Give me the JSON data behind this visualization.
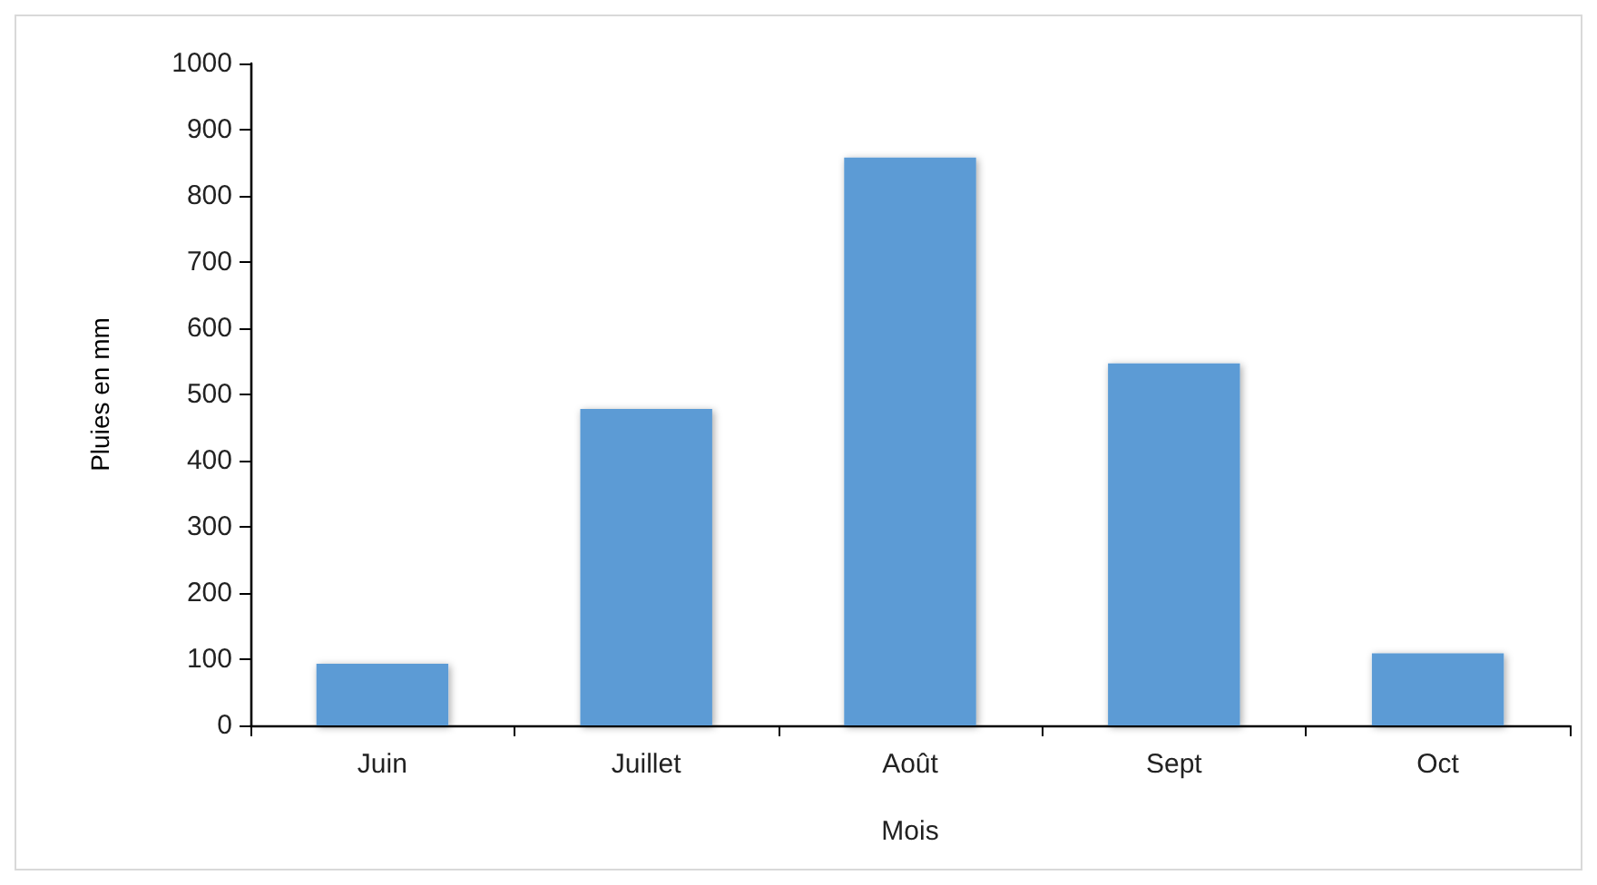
{
  "chart_data": {
    "type": "bar",
    "xlabel": "Mois",
    "ylabel": "Pluies en mm",
    "categories": [
      "Juin",
      "Juillet",
      "Août",
      "Sept",
      "Oct"
    ],
    "values": [
      93,
      478,
      858,
      547,
      109
    ],
    "color": "#5b9bd5",
    "ylim": [
      0,
      1000
    ],
    "yticks": [
      0,
      100,
      200,
      300,
      400,
      500,
      600,
      700,
      800,
      900,
      1000
    ]
  }
}
